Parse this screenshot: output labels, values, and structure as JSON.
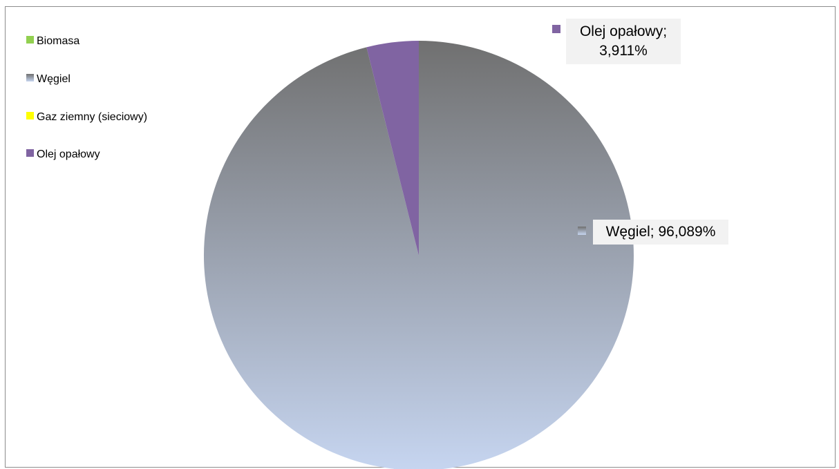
{
  "chart_data": {
    "type": "pie",
    "series": [
      {
        "name": "",
        "slices": [
          {
            "label": "Biomasa",
            "value": 0,
            "color": "#92d050"
          },
          {
            "label": "Węgiel",
            "value": 96.089,
            "color_top": "#707070",
            "color_bottom": "#c6d5f0"
          },
          {
            "label": "Gaz ziemny (sieciowy)",
            "value": 0,
            "color": "#ffff00"
          },
          {
            "label": "Olej opałowy",
            "value": 3.911,
            "color": "#8064a2"
          }
        ]
      }
    ],
    "legend": {
      "position": "top-left",
      "items": [
        "Biomasa",
        "Węgiel",
        "Gaz ziemny (sieciowy)",
        "Olej opałowy"
      ]
    },
    "data_labels": [
      {
        "series": "Olej opałowy",
        "line1": "Olej opałowy;",
        "line2": "3,911%"
      },
      {
        "series": "Węgiel",
        "line1": "Węgiel; 96,089%"
      }
    ]
  }
}
